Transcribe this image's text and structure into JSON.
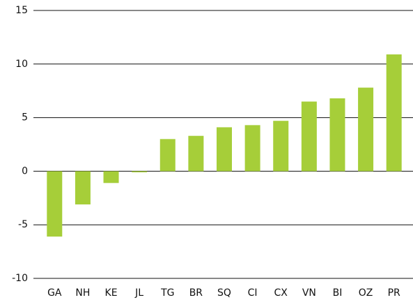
{
  "chart_data": {
    "type": "bar",
    "categories": [
      "GA",
      "NH",
      "KE",
      "JL",
      "TG",
      "BR",
      "SQ",
      "CI",
      "CX",
      "VN",
      "BI",
      "OZ",
      "PR"
    ],
    "values": [
      -6.1,
      -3.1,
      -1.1,
      -0.1,
      3.0,
      3.3,
      4.1,
      4.3,
      4.7,
      6.5,
      6.8,
      7.8,
      10.9
    ],
    "color": "#a6ce39",
    "ylim": [
      -10,
      15
    ],
    "yticks": [
      -10,
      -5,
      0,
      5,
      10,
      15
    ],
    "grid": true
  }
}
